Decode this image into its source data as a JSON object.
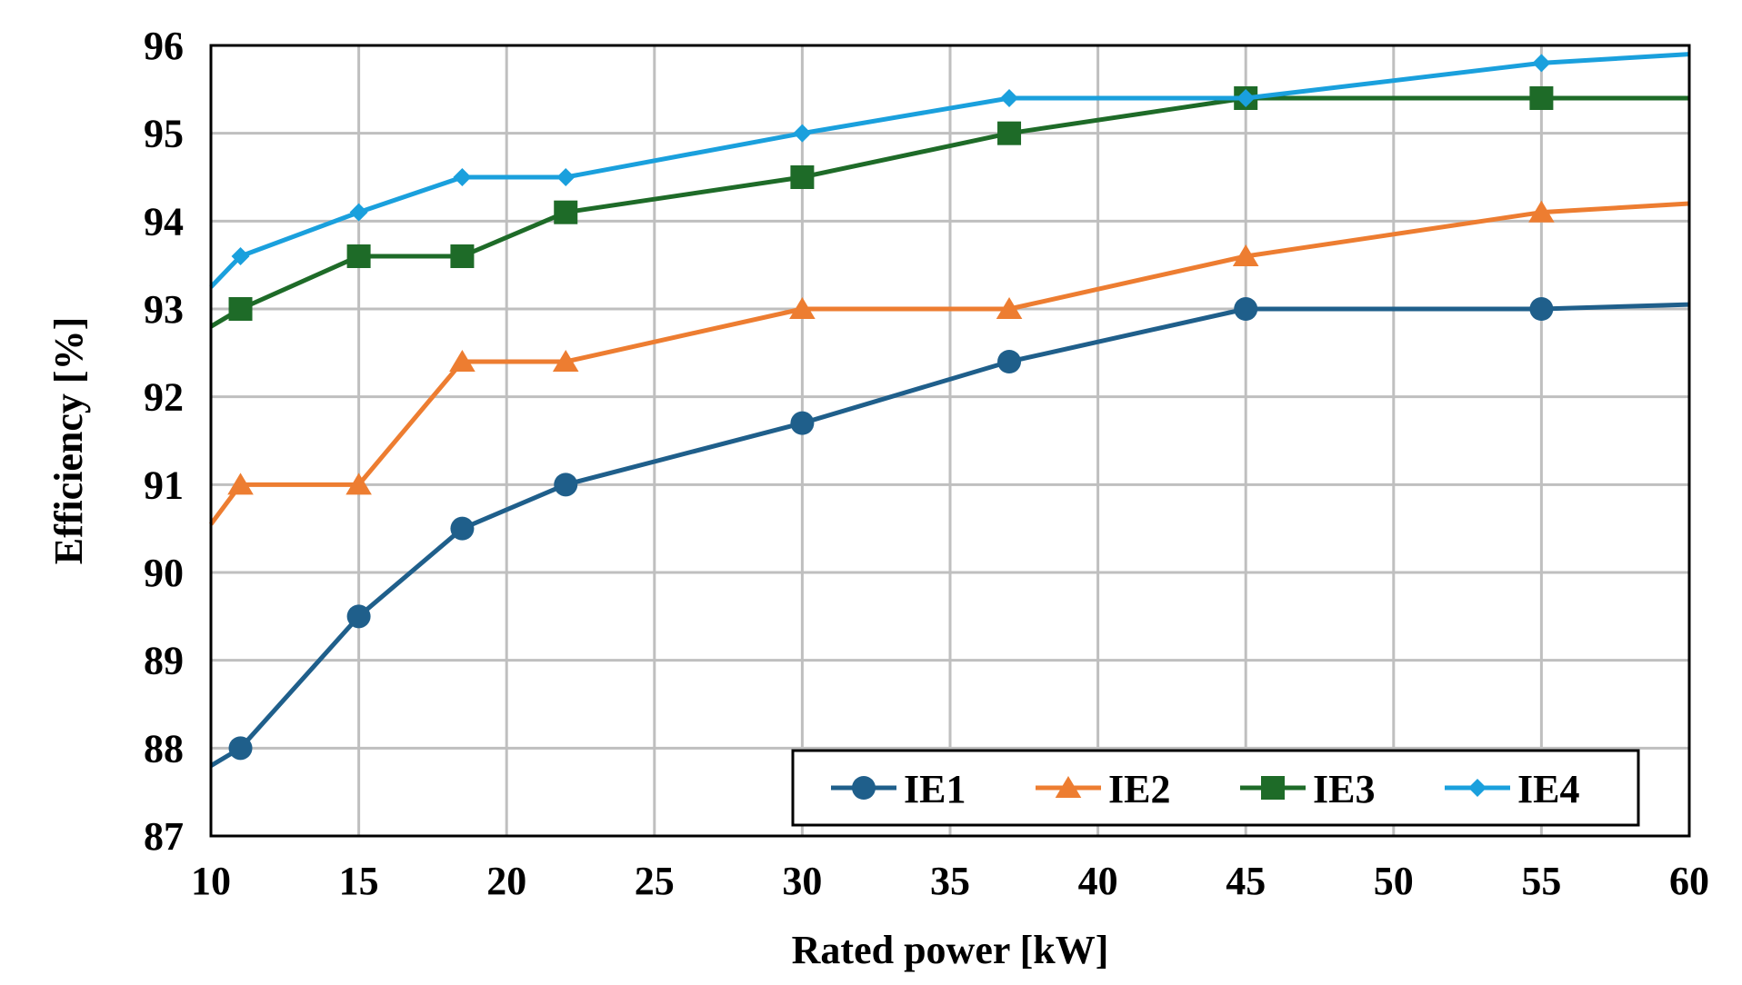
{
  "chart_data": {
    "type": "line",
    "xlabel": "Rated power [kW]",
    "ylabel": "Efficiency [%]",
    "xlim": [
      10,
      60
    ],
    "ylim": [
      87,
      96
    ],
    "x_ticks": [
      10,
      15,
      20,
      25,
      30,
      35,
      40,
      45,
      50,
      55,
      60
    ],
    "y_ticks": [
      87,
      88,
      89,
      90,
      91,
      92,
      93,
      94,
      95,
      96
    ],
    "grid": true,
    "legend_position": "bottom-right",
    "series": [
      {
        "name": "IE1",
        "color": "#1f5f8b",
        "marker": "circle",
        "x": [
          10,
          11,
          15,
          18.5,
          22,
          30,
          37,
          45,
          55,
          60
        ],
        "y": [
          87.8,
          88.0,
          89.5,
          90.5,
          91.0,
          91.7,
          92.4,
          93.0,
          93.0,
          93.05
        ],
        "marked": [
          false,
          true,
          true,
          true,
          true,
          true,
          true,
          true,
          true,
          false
        ]
      },
      {
        "name": "IE2",
        "color": "#ed7d31",
        "marker": "triangle",
        "x": [
          10,
          11,
          15,
          18.5,
          22,
          30,
          37,
          45,
          55,
          60
        ],
        "y": [
          90.55,
          91.0,
          91.0,
          92.4,
          92.4,
          93.0,
          93.0,
          93.6,
          94.1,
          94.2
        ],
        "marked": [
          false,
          true,
          true,
          true,
          true,
          true,
          true,
          true,
          true,
          false
        ]
      },
      {
        "name": "IE3",
        "color": "#1e6b28",
        "marker": "square",
        "x": [
          10,
          11,
          15,
          18.5,
          22,
          30,
          37,
          45,
          55,
          60
        ],
        "y": [
          92.8,
          93.0,
          93.6,
          93.6,
          94.1,
          94.5,
          95.0,
          95.4,
          95.4,
          95.4
        ],
        "marked": [
          false,
          true,
          true,
          true,
          true,
          true,
          true,
          true,
          true,
          false
        ]
      },
      {
        "name": "IE4",
        "color": "#1aa0dd",
        "marker": "diamond",
        "x": [
          10,
          11,
          15,
          18.5,
          22,
          30,
          37,
          45,
          55,
          60
        ],
        "y": [
          93.25,
          93.6,
          94.1,
          94.5,
          94.5,
          95.0,
          95.4,
          95.4,
          95.8,
          95.9
        ],
        "marked": [
          false,
          true,
          true,
          true,
          true,
          true,
          true,
          true,
          true,
          false
        ]
      }
    ]
  }
}
